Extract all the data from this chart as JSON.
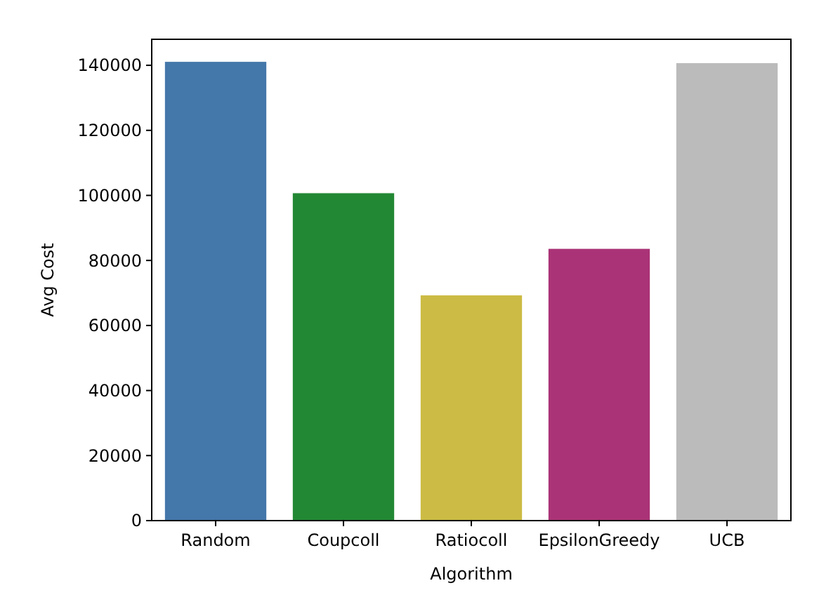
{
  "chart_data": {
    "type": "bar",
    "xlabel": "Algorithm",
    "ylabel": "Avg Cost",
    "categories": [
      "Random",
      "Coupcoll",
      "Ratiocoll",
      "EpsilonGreedy",
      "UCB"
    ],
    "values": [
      141200,
      100800,
      69400,
      83700,
      140800
    ],
    "colors": [
      "#4477aa",
      "#228833",
      "#ccbb44",
      "#aa3377",
      "#bbbbbb"
    ],
    "ylim": [
      0,
      148000
    ],
    "yticks": [
      0,
      20000,
      40000,
      60000,
      80000,
      100000,
      120000,
      140000
    ],
    "grid": false
  }
}
